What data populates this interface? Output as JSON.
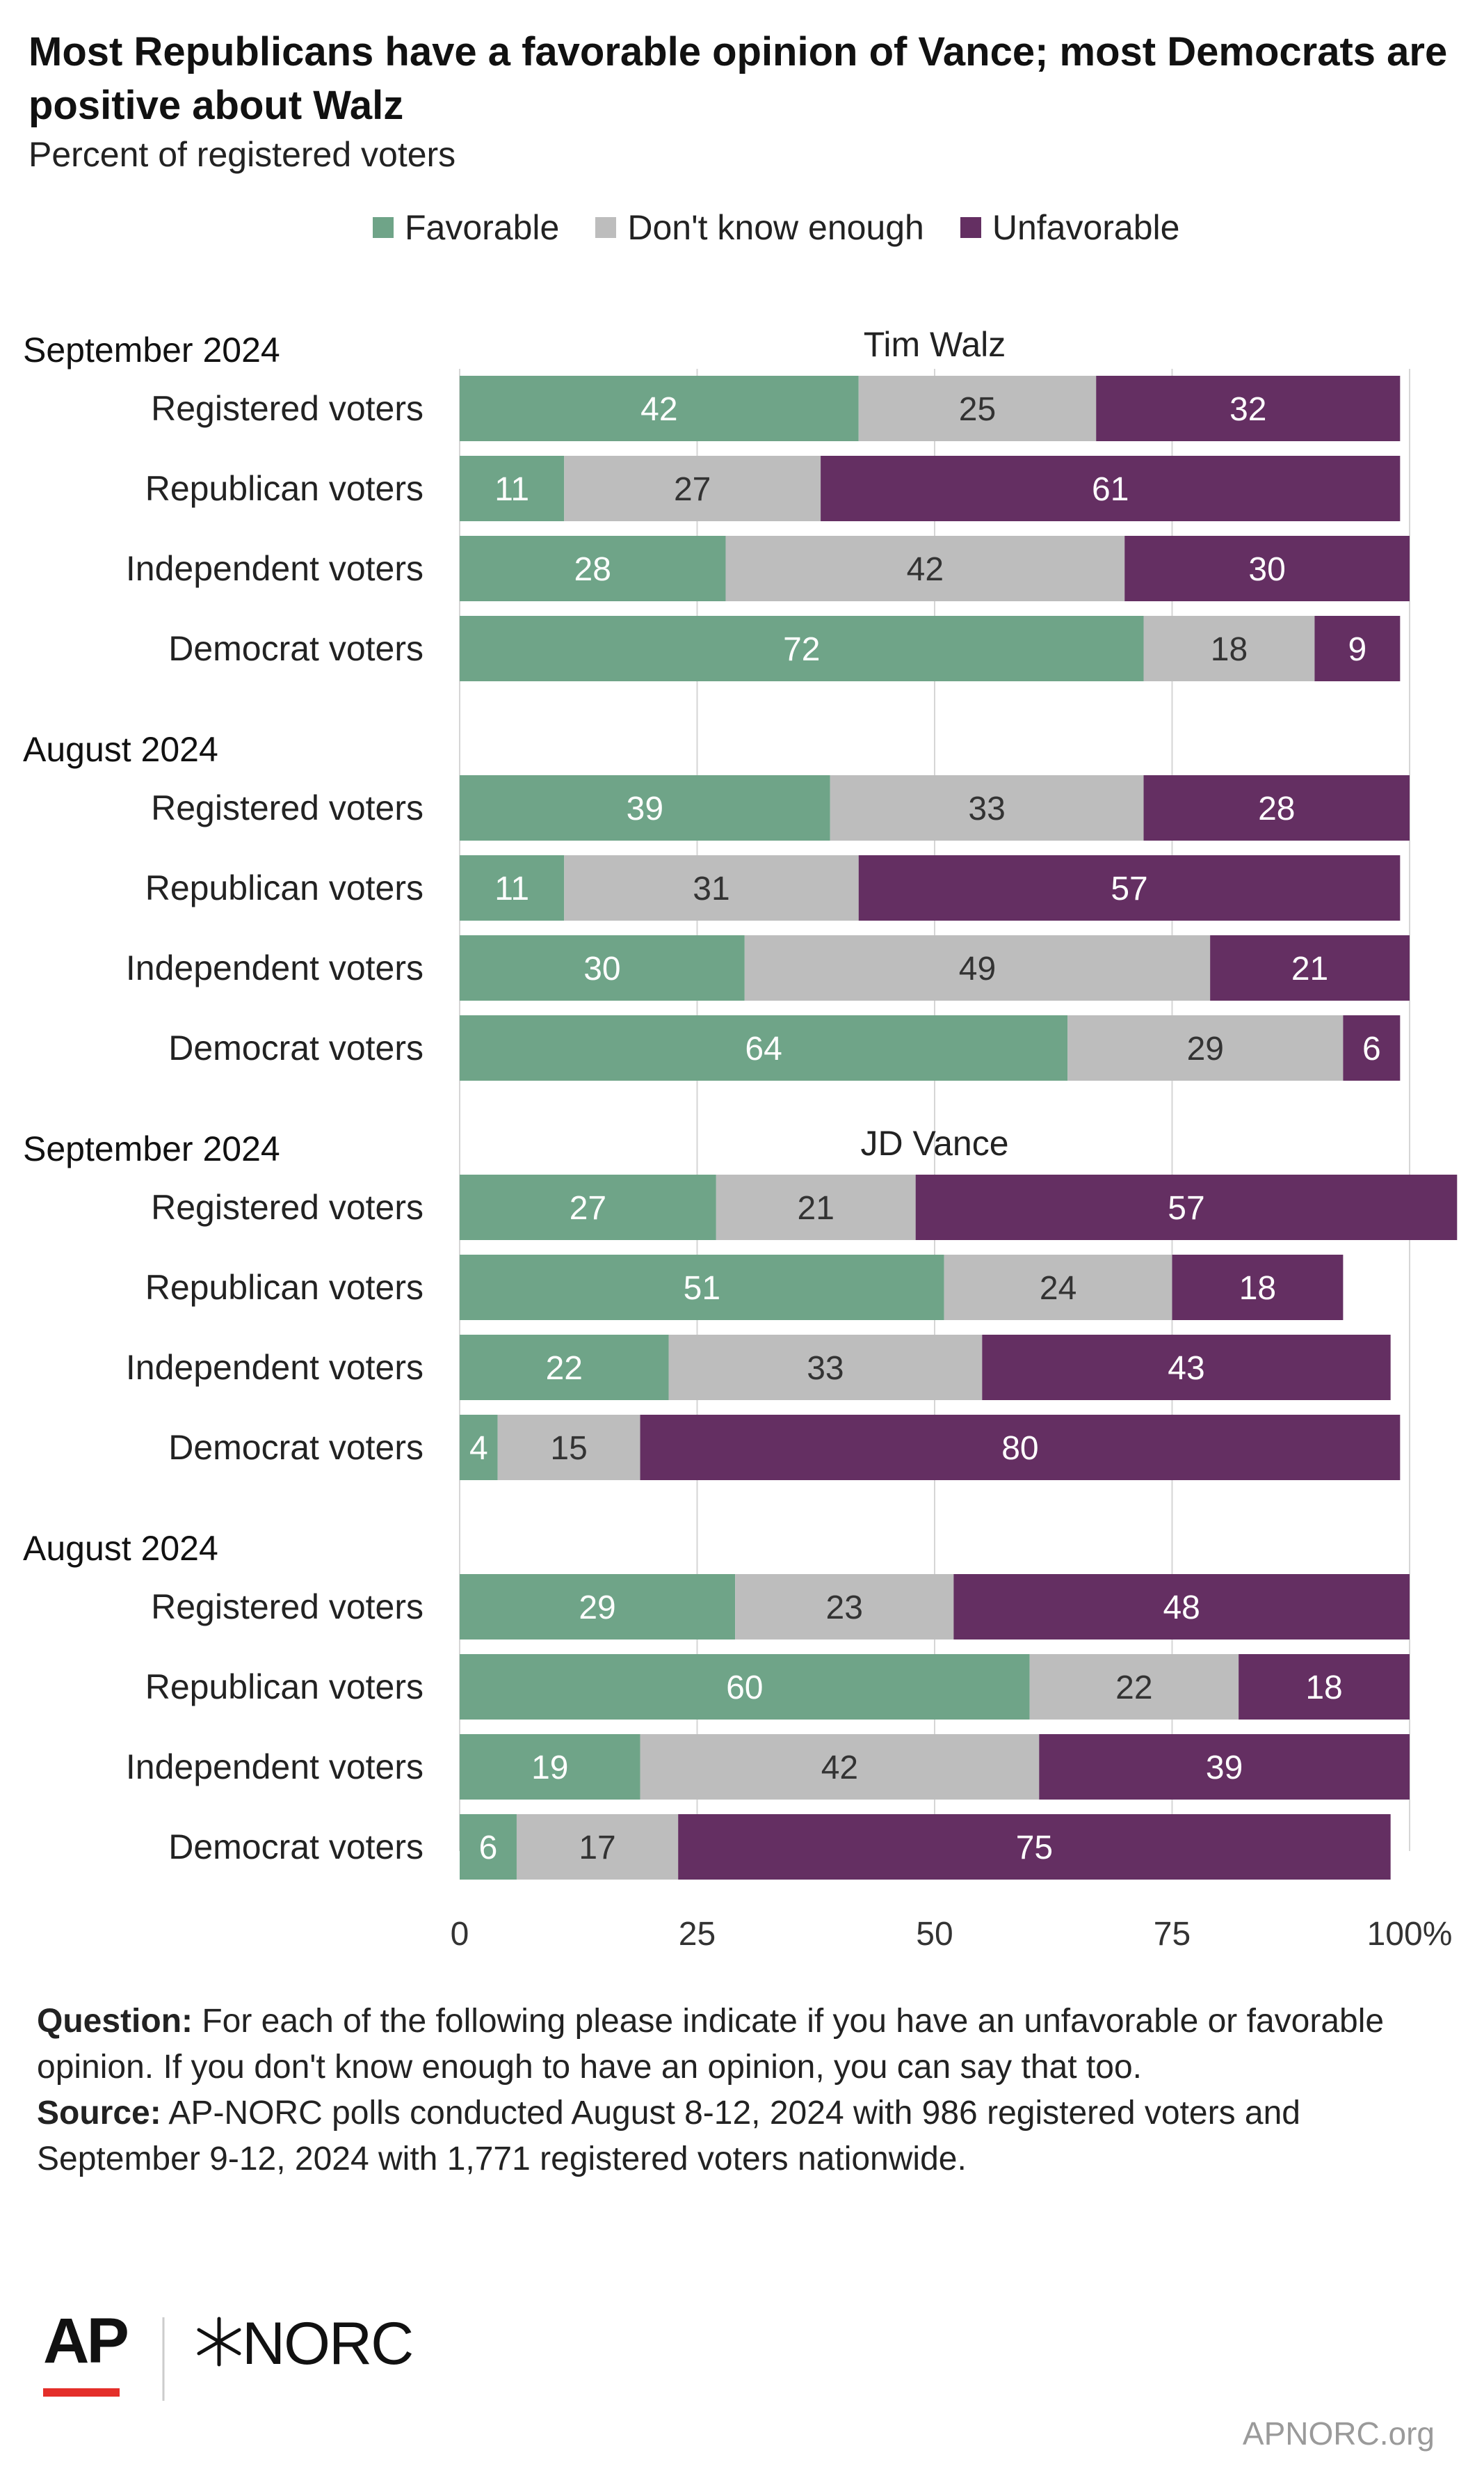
{
  "colors": {
    "favorable": "#6fa488",
    "dont_know": "#bdbdbd",
    "unfavorable": "#642f62",
    "grid": "#d6d6d6",
    "ap_red": "#e42f2a"
  },
  "header": {
    "title": "Most Republicans have a favorable opinion of Vance; most Democrats are positive about Walz",
    "subtitle": "Percent of registered voters"
  },
  "legend": [
    {
      "label": "Favorable",
      "color": "#6fa488"
    },
    {
      "label": "Don't know enough",
      "color": "#bdbdbd"
    },
    {
      "label": "Unfavorable",
      "color": "#642f62"
    }
  ],
  "chart_data": {
    "type": "bar",
    "orientation": "horizontal",
    "stacked": true,
    "xlim": [
      0,
      100
    ],
    "x_ticks": [
      "0",
      "25",
      "50",
      "75",
      "100%"
    ],
    "series_names": [
      "Favorable",
      "Don't know enough",
      "Unfavorable"
    ],
    "groups": [
      {
        "candidate": "Tim Walz",
        "period": "September 2024",
        "rows": [
          {
            "label": "Registered voters",
            "values": [
              42,
              25,
              32
            ]
          },
          {
            "label": "Republican voters",
            "values": [
              11,
              27,
              61
            ]
          },
          {
            "label": "Independent voters",
            "values": [
              28,
              42,
              30
            ]
          },
          {
            "label": "Democrat voters",
            "values": [
              72,
              18,
              9
            ]
          }
        ]
      },
      {
        "candidate": "",
        "period": "August 2024",
        "rows": [
          {
            "label": "Registered voters",
            "values": [
              39,
              33,
              28
            ]
          },
          {
            "label": "Republican voters",
            "values": [
              11,
              31,
              57
            ]
          },
          {
            "label": "Independent voters",
            "values": [
              30,
              49,
              21
            ]
          },
          {
            "label": "Democrat voters",
            "values": [
              64,
              29,
              6
            ]
          }
        ]
      },
      {
        "candidate": "JD Vance",
        "period": "September 2024",
        "rows": [
          {
            "label": "Registered voters",
            "values": [
              27,
              21,
              57
            ]
          },
          {
            "label": "Republican voters",
            "values": [
              51,
              24,
              18
            ]
          },
          {
            "label": "Independent voters",
            "values": [
              22,
              33,
              43
            ]
          },
          {
            "label": "Democrat voters",
            "values": [
              4,
              15,
              80
            ]
          }
        ]
      },
      {
        "candidate": "",
        "period": "August 2024",
        "rows": [
          {
            "label": "Registered voters",
            "values": [
              29,
              23,
              48
            ]
          },
          {
            "label": "Republican voters",
            "values": [
              60,
              22,
              18
            ]
          },
          {
            "label": "Independent voters",
            "values": [
              19,
              42,
              39
            ]
          },
          {
            "label": "Democrat voters",
            "values": [
              6,
              17,
              75
            ]
          }
        ]
      }
    ]
  },
  "footer": {
    "question_lead": "Question:",
    "question_text": "For each of the following please indicate if you have an unfavorable or favorable opinion. If you don't know enough to have an opinion, you can say that too.",
    "source_lead": "Source:",
    "source_text": "AP-NORC polls conducted August 8-12, 2024 with 986 registered voters and September 9-12, 2024 with 1,771 registered voters nationwide."
  },
  "branding": {
    "ap_logo_text": "AP",
    "norc_logo_text": "NORC",
    "domain": "APNORC.org"
  }
}
